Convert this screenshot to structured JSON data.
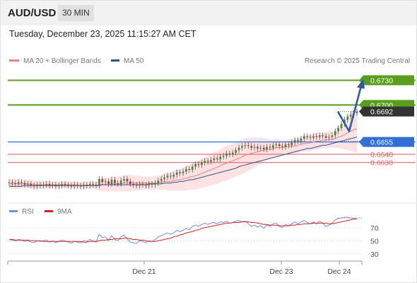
{
  "header": {
    "pair": "AUD/USD",
    "timeframe": "30 MIN",
    "timestamp": "Tuesday, December 23, 2025 11:15:27 AM CET",
    "credit": "Research © 2025 Trading Central"
  },
  "legend": {
    "ma20": "MA 20 + Bollinger Bands",
    "ma50": "MA 50",
    "rsi": "RSI",
    "ma9": "9MA"
  },
  "colors": {
    "resistance": "#5a9e1e",
    "pivot": "#2f6fd6",
    "support": "#e06666",
    "candle_up": "#3a8a2e",
    "candle_down": "#c62828",
    "ma20": "#f08080",
    "ma50": "#2f4f8f",
    "bollinger_fill": "#fbd6d6",
    "rsi": "#6f8fe0",
    "ma9": "#dd2222",
    "arrow": "#2a5ca8",
    "current": "#333333"
  },
  "chart_data": [
    {
      "type": "candlestick",
      "ylim": [
        0.6585,
        0.6745
      ],
      "x_ticks": [
        "Dec 21",
        "Dec 23",
        "Dec 24"
      ],
      "levels": [
        {
          "label": "0.6730",
          "value": 0.673,
          "kind": "resistance"
        },
        {
          "label": "0.6700",
          "value": 0.67,
          "kind": "resistance"
        },
        {
          "label": "0.6692",
          "value": 0.6692,
          "kind": "current"
        },
        {
          "label": "0.6655",
          "value": 0.6655,
          "kind": "pivot"
        },
        {
          "label": "0.6640",
          "value": 0.664,
          "kind": "support"
        },
        {
          "label": "0.6630",
          "value": 0.663,
          "kind": "support"
        }
      ],
      "close": [
        0.6606,
        0.6605,
        0.6604,
        0.6606,
        0.6605,
        0.6603,
        0.6604,
        0.6602,
        0.6601,
        0.6603,
        0.6602,
        0.6603,
        0.6604,
        0.6602,
        0.6603,
        0.6601,
        0.6602,
        0.6604,
        0.6603,
        0.6602,
        0.6601,
        0.6603,
        0.6602,
        0.6601,
        0.6603,
        0.6602,
        0.6604,
        0.6603,
        0.6602,
        0.661,
        0.6606,
        0.6607,
        0.6604,
        0.6609,
        0.6605,
        0.6604,
        0.6608,
        0.661,
        0.6607,
        0.6604,
        0.6603,
        0.6602,
        0.6604,
        0.6603,
        0.6602,
        0.6604,
        0.6603,
        0.6605,
        0.6608,
        0.661,
        0.6612,
        0.6614,
        0.6613,
        0.6615,
        0.6618,
        0.6617,
        0.6619,
        0.6622,
        0.6621,
        0.6625,
        0.6628,
        0.6627,
        0.663,
        0.6632,
        0.6631,
        0.6633,
        0.6635,
        0.6634,
        0.6637,
        0.6638,
        0.6641,
        0.664,
        0.6642,
        0.6645,
        0.6648,
        0.665,
        0.6651,
        0.665,
        0.6648,
        0.6649,
        0.6647,
        0.6648,
        0.6646,
        0.6649,
        0.6648,
        0.6651,
        0.6652,
        0.665,
        0.6649,
        0.6652,
        0.6651,
        0.6654,
        0.6657,
        0.6656,
        0.6659,
        0.6662,
        0.6661,
        0.666,
        0.6662,
        0.6661,
        0.6663,
        0.6662,
        0.666,
        0.6661,
        0.6663,
        0.6668,
        0.6672,
        0.6677,
        0.6682,
        0.6686,
        0.6688,
        0.669,
        0.6692
      ],
      "series": [
        {
          "name": "MA 20",
          "values": [
            0.6604,
            0.6604,
            0.6604,
            0.6604,
            0.6604,
            0.6604,
            0.6604,
            0.6604,
            0.6603,
            0.6603,
            0.6603,
            0.6603,
            0.6603,
            0.6603,
            0.6603,
            0.6603,
            0.6603,
            0.6603,
            0.6603,
            0.6603,
            0.6603,
            0.6603,
            0.6602,
            0.6602,
            0.6602,
            0.6602,
            0.6602,
            0.6602,
            0.6602,
            0.6603,
            0.6603,
            0.6603,
            0.6603,
            0.6604,
            0.6604,
            0.6604,
            0.6604,
            0.6605,
            0.6605,
            0.6605,
            0.6605,
            0.6605,
            0.6605,
            0.6605,
            0.6605,
            0.6605,
            0.6605,
            0.6605,
            0.6606,
            0.6606,
            0.6607,
            0.6607,
            0.6607,
            0.6608,
            0.6609,
            0.6609,
            0.661,
            0.6611,
            0.6612,
            0.6613,
            0.6614,
            0.6615,
            0.6617,
            0.6618,
            0.662,
            0.6621,
            0.6623,
            0.6624,
            0.6626,
            0.6628,
            0.6629,
            0.6631,
            0.6632,
            0.6634,
            0.6635,
            0.6637,
            0.6639,
            0.664,
            0.6641,
            0.6642,
            0.6643,
            0.6644,
            0.6645,
            0.6646,
            0.6646,
            0.6647,
            0.6648,
            0.6648,
            0.6648,
            0.6649,
            0.6649,
            0.665,
            0.665,
            0.6651,
            0.6652,
            0.6653,
            0.6653,
            0.6654,
            0.6655,
            0.6656,
            0.6656,
            0.6657,
            0.6657,
            0.6658,
            0.6658,
            0.6659,
            0.6661,
            0.6662,
            0.6664,
            0.6666,
            0.6668,
            0.667,
            0.6671
          ]
        },
        {
          "name": "MA 50",
          "values": [
            0.6601,
            0.6601,
            0.6601,
            0.6601,
            0.6601,
            0.6602,
            0.6602,
            0.6602,
            0.6602,
            0.6602,
            0.6602,
            0.6602,
            0.6602,
            0.6602,
            0.6602,
            0.6602,
            0.6602,
            0.6602,
            0.6602,
            0.6602,
            0.6602,
            0.6602,
            0.6602,
            0.6602,
            0.6602,
            0.6602,
            0.6602,
            0.6602,
            0.6602,
            0.6602,
            0.6603,
            0.6603,
            0.6603,
            0.6603,
            0.6603,
            0.6603,
            0.6603,
            0.6603,
            0.6603,
            0.6603,
            0.6603,
            0.6603,
            0.6603,
            0.6603,
            0.6603,
            0.6604,
            0.6604,
            0.6604,
            0.6604,
            0.6604,
            0.6605,
            0.6605,
            0.6605,
            0.6606,
            0.6606,
            0.6607,
            0.6607,
            0.6608,
            0.6609,
            0.6609,
            0.661,
            0.6611,
            0.6612,
            0.6613,
            0.6614,
            0.6615,
            0.6616,
            0.6617,
            0.6618,
            0.6619,
            0.662,
            0.6621,
            0.6622,
            0.6623,
            0.6625,
            0.6626,
            0.6627,
            0.6628,
            0.6629,
            0.663,
            0.6631,
            0.6632,
            0.6633,
            0.6634,
            0.6635,
            0.6636,
            0.6637,
            0.6638,
            0.6639,
            0.664,
            0.6641,
            0.6642,
            0.6643,
            0.6644,
            0.6645,
            0.6646,
            0.6647,
            0.6647,
            0.6648,
            0.6649,
            0.665,
            0.6651,
            0.6651,
            0.6652,
            0.6653,
            0.6654,
            0.6655,
            0.6656,
            0.6657,
            0.6658,
            0.6659,
            0.666,
            0.6661
          ]
        }
      ],
      "bollinger_halfwidth": [
        0.0006,
        0.0006,
        0.0006,
        0.0006,
        0.0005,
        0.0005,
        0.0005,
        0.0005,
        0.0005,
        0.0005,
        0.0005,
        0.0005,
        0.0005,
        0.0005,
        0.0004,
        0.0004,
        0.0004,
        0.0004,
        0.0004,
        0.0004,
        0.0004,
        0.0004,
        0.0004,
        0.0004,
        0.0004,
        0.0004,
        0.0004,
        0.0004,
        0.0005,
        0.0007,
        0.0008,
        0.0008,
        0.0008,
        0.0009,
        0.0009,
        0.0009,
        0.0009,
        0.001,
        0.001,
        0.001,
        0.0009,
        0.0009,
        0.0009,
        0.0008,
        0.0008,
        0.0008,
        0.0008,
        0.0008,
        0.0008,
        0.0009,
        0.001,
        0.0011,
        0.0011,
        0.0012,
        0.0013,
        0.0013,
        0.0014,
        0.0015,
        0.0015,
        0.0016,
        0.0017,
        0.0017,
        0.0018,
        0.0018,
        0.0019,
        0.0019,
        0.002,
        0.002,
        0.002,
        0.0021,
        0.0021,
        0.0021,
        0.0021,
        0.0021,
        0.0021,
        0.0021,
        0.0021,
        0.002,
        0.0019,
        0.0018,
        0.0017,
        0.0016,
        0.0014,
        0.0013,
        0.0012,
        0.0011,
        0.0011,
        0.001,
        0.0009,
        0.0009,
        0.0009,
        0.0009,
        0.0009,
        0.0009,
        0.0009,
        0.001,
        0.001,
        0.001,
        0.001,
        0.001,
        0.001,
        0.001,
        0.001,
        0.001,
        0.001,
        0.0011,
        0.0013,
        0.0015,
        0.0018,
        0.0021,
        0.0024,
        0.0027,
        0.003
      ],
      "forecast": [
        0.6692,
        0.6668,
        0.673
      ]
    },
    {
      "type": "line",
      "ylim": [
        20,
        85
      ],
      "y_ticks": [
        "70",
        "50",
        "30"
      ],
      "series": [
        {
          "name": "RSI",
          "values": [
            52,
            51,
            50,
            52,
            51,
            49,
            50,
            48,
            47,
            50,
            49,
            50,
            51,
            48,
            50,
            47,
            49,
            51,
            50,
            48,
            46,
            49,
            48,
            47,
            50,
            49,
            52,
            50,
            48,
            60,
            55,
            56,
            50,
            58,
            52,
            50,
            56,
            59,
            53,
            48,
            47,
            46,
            50,
            49,
            47,
            50,
            49,
            52,
            56,
            58,
            60,
            62,
            60,
            62,
            66,
            64,
            66,
            69,
            67,
            72,
            74,
            72,
            75,
            77,
            75,
            77,
            78,
            76,
            79,
            78,
            80,
            77,
            78,
            80,
            81,
            79,
            80,
            76,
            72,
            74,
            71,
            73,
            69,
            74,
            72,
            76,
            77,
            72,
            70,
            75,
            73,
            76,
            79,
            76,
            79,
            81,
            78,
            76,
            79,
            76,
            80,
            77,
            72,
            74,
            77,
            82,
            84,
            85,
            86,
            86,
            85,
            84,
            83
          ]
        },
        {
          "name": "9MA",
          "values": [
            52,
            52,
            51,
            51,
            51,
            51,
            51,
            50,
            50,
            50,
            50,
            49,
            49,
            49,
            49,
            49,
            49,
            49,
            49,
            49,
            49,
            49,
            49,
            49,
            48,
            48,
            49,
            49,
            49,
            50,
            51,
            51,
            52,
            52,
            53,
            53,
            53,
            54,
            54,
            53,
            52,
            52,
            51,
            51,
            50,
            49,
            49,
            49,
            50,
            51,
            52,
            53,
            54,
            56,
            57,
            59,
            60,
            62,
            63,
            64,
            66,
            67,
            69,
            70,
            71,
            72,
            73,
            74,
            75,
            76,
            77,
            77,
            78,
            78,
            78,
            79,
            79,
            79,
            78,
            78,
            77,
            76,
            75,
            75,
            74,
            74,
            74,
            73,
            73,
            73,
            73,
            74,
            74,
            75,
            75,
            76,
            76,
            76,
            77,
            77,
            77,
            77,
            77,
            76,
            76,
            77,
            78,
            79,
            80,
            81,
            82,
            83,
            84
          ]
        }
      ]
    }
  ]
}
